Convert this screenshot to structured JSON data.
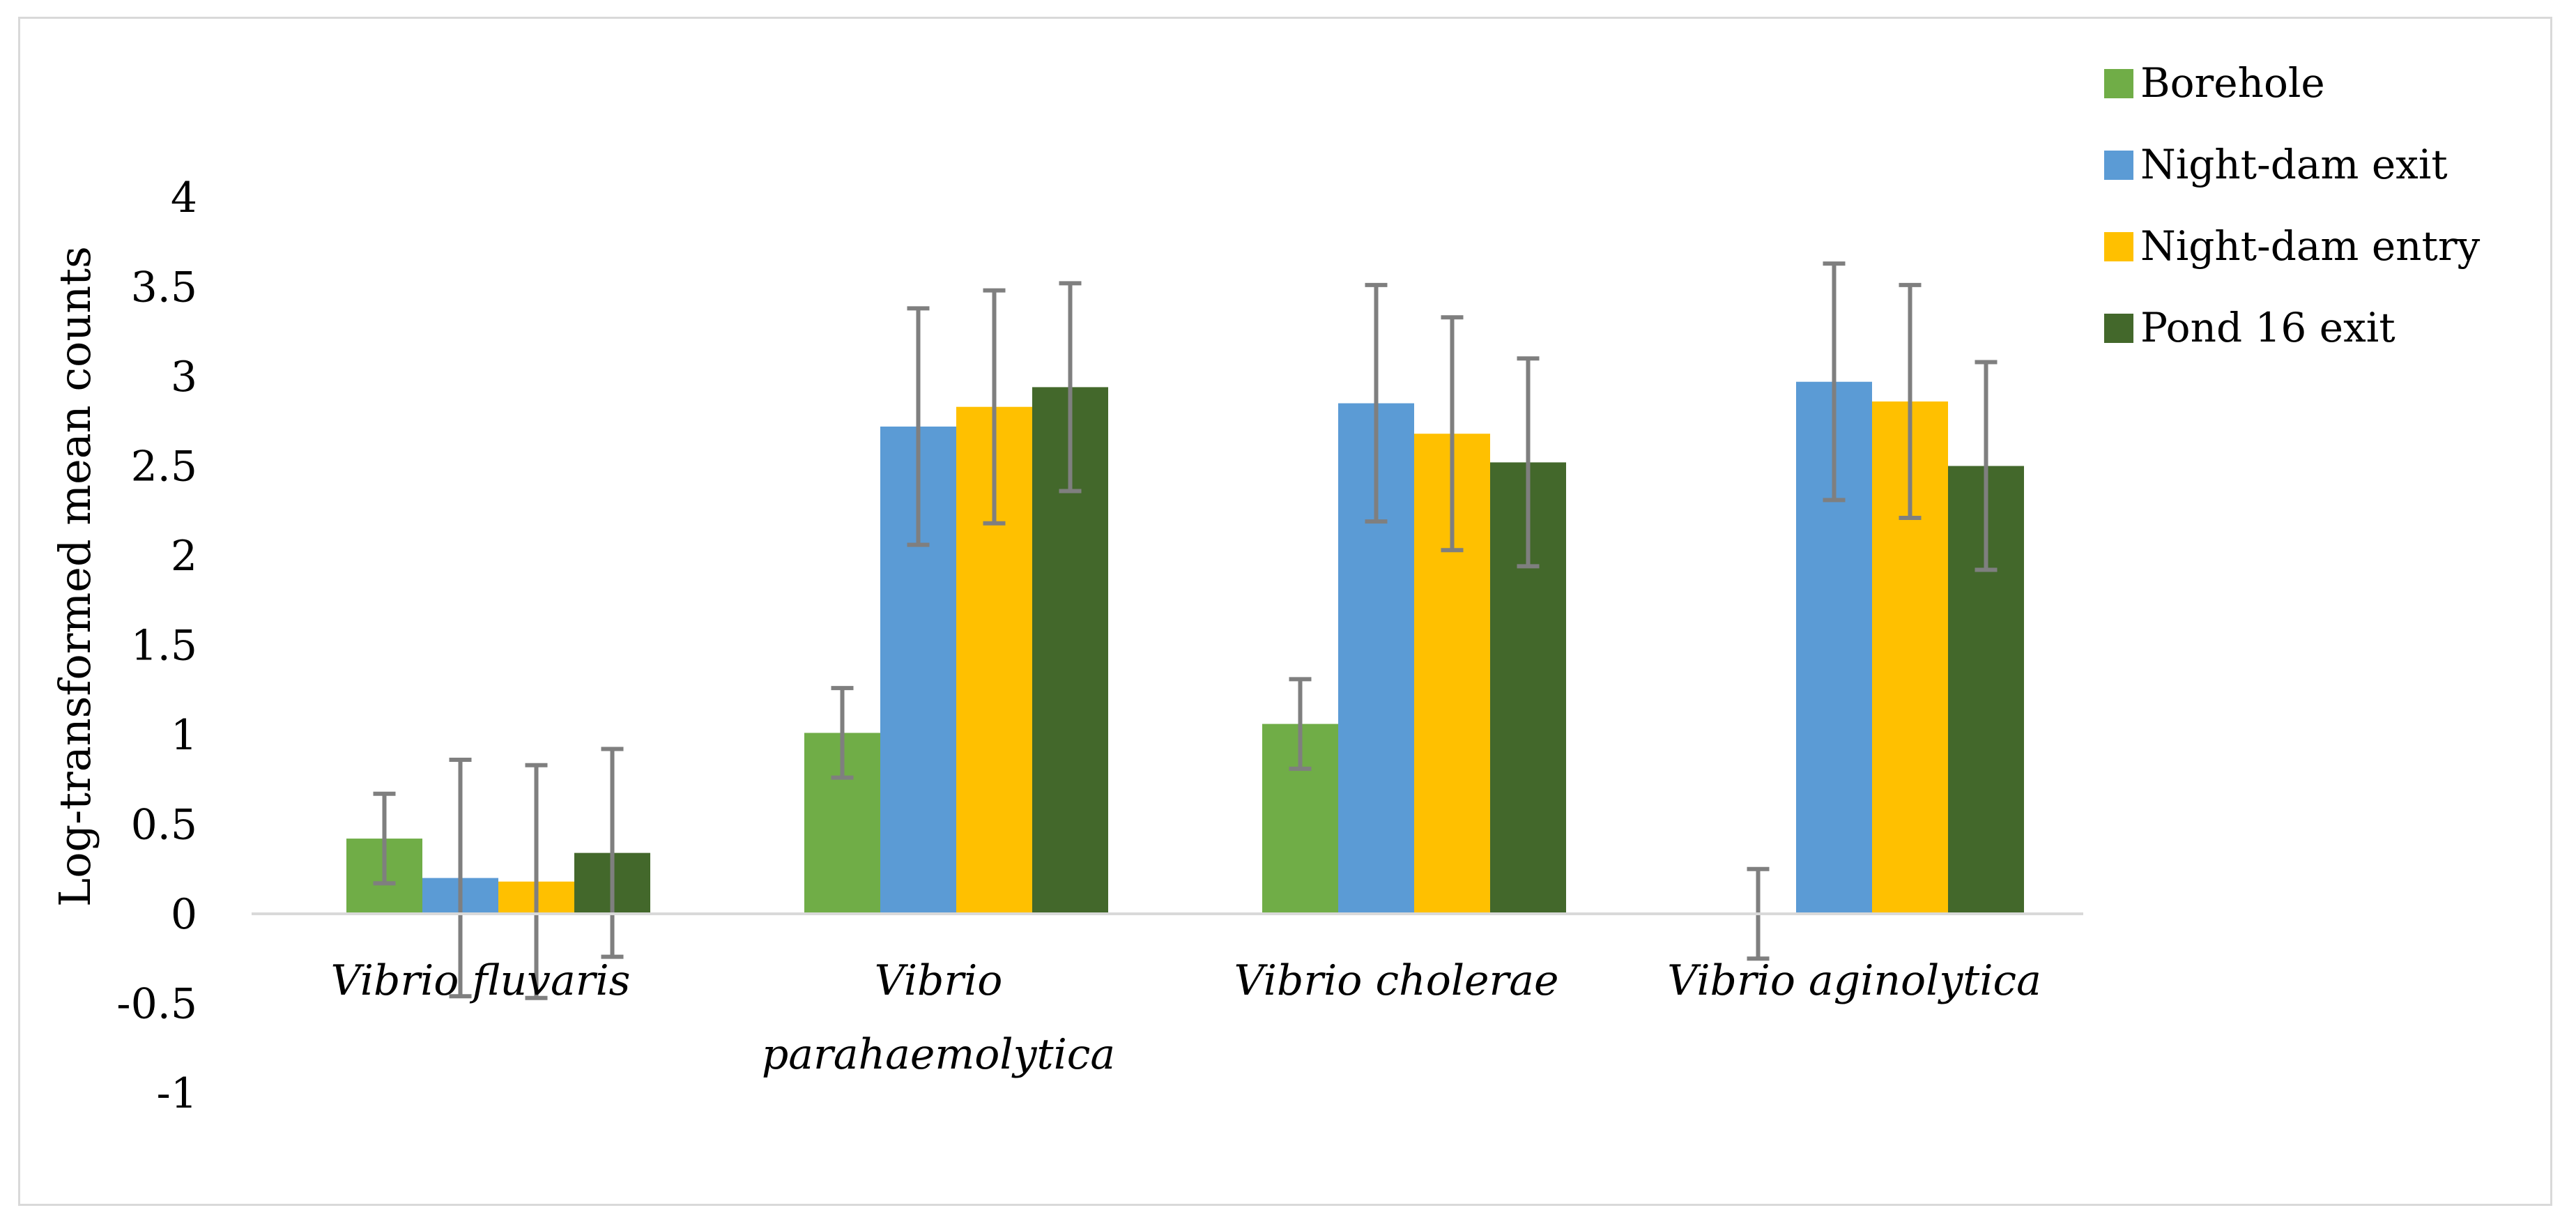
{
  "chart_data": {
    "type": "bar",
    "title": "",
    "xlabel": "",
    "ylabel": "Log-transformed mean counts",
    "ylim": [
      -1,
      4
    ],
    "yticks": [
      4,
      3.5,
      3,
      2.5,
      2,
      1.5,
      1,
      0.5,
      0,
      -0.5,
      -1
    ],
    "ytick_labels": [
      "4",
      "3.5",
      "3",
      "2.5",
      "2",
      "1.5",
      "1",
      "0.5",
      "0",
      "-0.5",
      "-1"
    ],
    "grid": false,
    "legend_position": "top-right",
    "categories": [
      [
        "Vibrio fluvaris"
      ],
      [
        "Vibrio",
        "parahaemolytica"
      ],
      [
        "Vibrio cholerae"
      ],
      [
        "Vibrio aginolytica"
      ]
    ],
    "series": [
      {
        "name": "Borehole",
        "color": "#70ad47",
        "values": [
          0.42,
          1.01,
          1.06,
          0
        ],
        "errors": [
          0.25,
          0.25,
          0.25,
          0.25
        ]
      },
      {
        "name": "Night-dam exit",
        "color": "#5b9bd5",
        "values": [
          0.2,
          2.72,
          2.85,
          2.97
        ],
        "errors": [
          0.66,
          0.66,
          0.66,
          0.66
        ]
      },
      {
        "name": "Night-dam entry",
        "color": "#ffc000",
        "values": [
          0.18,
          2.83,
          2.68,
          2.86
        ],
        "errors": [
          0.65,
          0.65,
          0.65,
          0.65
        ]
      },
      {
        "name": "Pond 16 exit",
        "color": "#43682b",
        "values": [
          0.34,
          2.94,
          2.52,
          2.5
        ],
        "errors": [
          0.58,
          0.58,
          0.58,
          0.58
        ]
      }
    ],
    "error_bar_color": "#7f7f7f",
    "axis_color": "#d9d9d9"
  }
}
